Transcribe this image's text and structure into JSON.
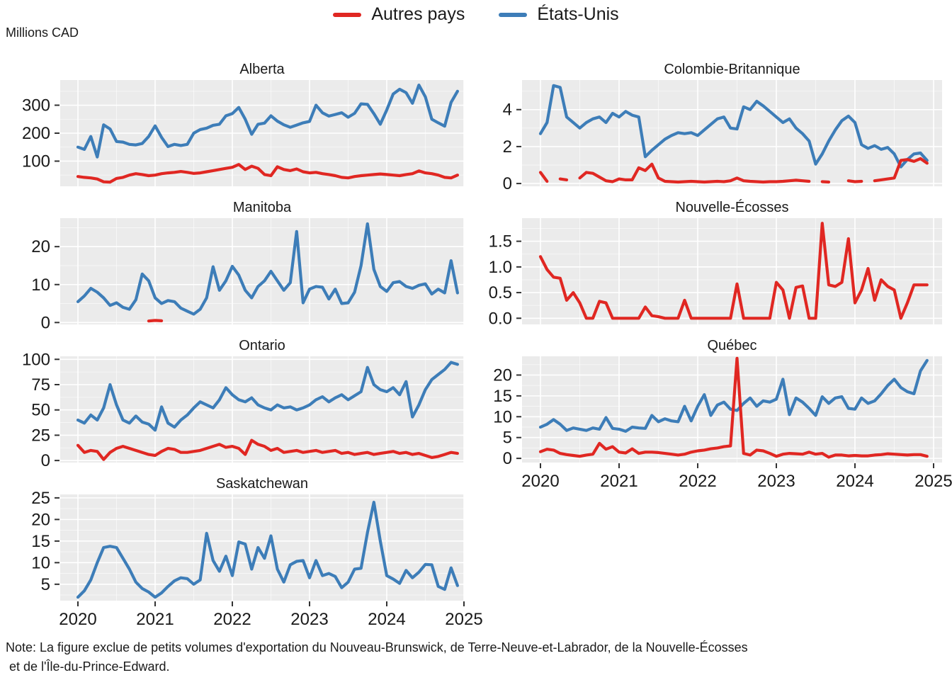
{
  "unit_label": "Millions CAD",
  "legend": {
    "items": [
      {
        "label": "Autres pays",
        "color": "#e02722"
      },
      {
        "label": "États-Unis",
        "color": "#3d7db8"
      }
    ]
  },
  "note": {
    "line1": "Note: La figure exclue de petits volumes d'exportation du Nouveau-Brunswick, de Terre-Neuve-et-Labrador, de la Nouvelle-Écosses",
    "line2": " et de l'Île-du-Prince-Edward."
  },
  "chart_data": {
    "type": "line",
    "x_frequency": "monthly",
    "x_start": "2020-01",
    "x_tick_labels": [
      "2020",
      "2021",
      "2022",
      "2023",
      "2024",
      "2025"
    ],
    "series_names": [
      "Autres pays",
      "États-Unis"
    ],
    "colors": {
      "autres_pays": "#e02722",
      "etats_unis": "#3d7db8"
    },
    "panel_background": "#ebebeb",
    "grid_color": "#ffffff",
    "facets": [
      {
        "key": "alberta",
        "title": "Alberta",
        "col": 0,
        "row": 0,
        "xaxis": false,
        "yticks": [
          100,
          200,
          300
        ],
        "tick_decimals": 0,
        "ylim": [
          10,
          390
        ],
        "series": {
          "etats_unis": [
            150,
            142,
            188,
            115,
            230,
            215,
            170,
            168,
            160,
            158,
            163,
            188,
            226,
            185,
            152,
            160,
            156,
            160,
            200,
            213,
            218,
            228,
            232,
            262,
            270,
            292,
            250,
            196,
            232,
            236,
            262,
            243,
            230,
            221,
            229,
            237,
            242,
            300,
            273,
            261,
            267,
            273,
            257,
            271,
            305,
            303,
            270,
            232,
            283,
            340,
            357,
            345,
            307,
            372,
            330,
            250,
            237,
            225,
            310,
            350
          ],
          "autres_pays": [
            45,
            42,
            40,
            36,
            26,
            25,
            38,
            42,
            50,
            55,
            52,
            48,
            50,
            55,
            58,
            60,
            63,
            60,
            56,
            58,
            62,
            66,
            70,
            74,
            78,
            88,
            70,
            82,
            74,
            52,
            48,
            80,
            70,
            66,
            72,
            62,
            58,
            60,
            55,
            52,
            48,
            42,
            40,
            45,
            48,
            50,
            52,
            54,
            52,
            50,
            48,
            52,
            55,
            65,
            58,
            55,
            50,
            42,
            40,
            50
          ]
        }
      },
      {
        "key": "colombie_britannique",
        "title": "Colombie-Britannique",
        "col": 1,
        "row": 0,
        "xaxis": false,
        "yticks": [
          0,
          2,
          4
        ],
        "tick_decimals": 0,
        "ylim": [
          -0.15,
          5.6
        ],
        "series": {
          "etats_unis": [
            2.7,
            3.3,
            5.3,
            5.2,
            3.6,
            3.3,
            3.0,
            3.3,
            3.5,
            3.6,
            3.3,
            3.8,
            3.6,
            3.9,
            3.7,
            3.6,
            1.45,
            1.8,
            2.1,
            2.4,
            2.6,
            2.75,
            2.7,
            2.75,
            2.6,
            2.9,
            3.2,
            3.5,
            3.6,
            3.0,
            2.95,
            4.15,
            4.0,
            4.45,
            4.2,
            3.9,
            3.6,
            3.3,
            3.5,
            3.0,
            2.7,
            2.3,
            1.05,
            1.6,
            2.3,
            2.9,
            3.4,
            3.65,
            3.3,
            2.1,
            1.9,
            2.05,
            1.85,
            1.95,
            1.6,
            0.9,
            1.3,
            1.6,
            1.65,
            1.25
          ],
          "autres_pays": [
            0.6,
            0.12,
            null,
            0.25,
            0.2,
            null,
            0.3,
            0.6,
            0.55,
            0.35,
            0.15,
            0.1,
            0.25,
            0.2,
            0.2,
            0.85,
            0.7,
            1.05,
            0.3,
            0.12,
            0.1,
            0.08,
            0.1,
            0.12,
            0.1,
            0.08,
            0.1,
            0.12,
            0.1,
            0.15,
            0.3,
            0.15,
            0.12,
            0.1,
            0.08,
            0.1,
            0.1,
            0.12,
            0.15,
            0.18,
            0.15,
            0.12,
            null,
            0.1,
            0.08,
            null,
            null,
            0.15,
            0.1,
            0.12,
            null,
            0.15,
            0.2,
            0.25,
            0.3,
            1.25,
            1.3,
            1.2,
            1.35,
            1.1
          ]
        }
      },
      {
        "key": "manitoba",
        "title": "Manitoba",
        "col": 0,
        "row": 1,
        "xaxis": false,
        "yticks": [
          0,
          10,
          20
        ],
        "tick_decimals": 0,
        "ylim": [
          -0.5,
          27.5
        ],
        "series": {
          "etats_unis": [
            5.5,
            7.0,
            9.0,
            8.0,
            6.5,
            4.5,
            5.2,
            4.0,
            3.5,
            6.0,
            12.8,
            11.0,
            6.5,
            5.0,
            5.8,
            5.5,
            3.8,
            3.0,
            2.2,
            3.5,
            6.5,
            14.7,
            8.5,
            11.0,
            14.8,
            12.5,
            8.5,
            6.5,
            9.5,
            11.0,
            13.5,
            11.0,
            8.5,
            10.5,
            24.0,
            5.2,
            8.8,
            9.5,
            9.3,
            6.2,
            8.8,
            5.0,
            5.2,
            8.0,
            15.0,
            26.0,
            14.0,
            9.5,
            8.2,
            10.5,
            10.8,
            9.5,
            9.0,
            9.8,
            10.2,
            7.5,
            8.8,
            7.8,
            16.3,
            7.8
          ],
          "autres_pays": [
            null,
            null,
            null,
            null,
            null,
            null,
            null,
            null,
            null,
            null,
            null,
            0.4,
            0.55,
            0.45,
            null,
            null,
            null,
            null,
            null,
            null,
            null,
            null,
            null,
            null,
            null,
            null,
            null,
            null,
            null,
            null,
            null,
            null,
            null,
            null,
            null,
            null,
            null,
            null,
            null,
            null,
            null,
            null,
            null,
            null,
            null,
            null,
            null,
            null,
            null,
            null,
            null,
            null,
            null,
            null,
            null,
            null,
            null,
            null,
            null,
            null
          ]
        }
      },
      {
        "key": "nouvelle_ecosses",
        "title": "Nouvelle-Écosses",
        "col": 1,
        "row": 1,
        "xaxis": false,
        "yticks": [
          0,
          0.5,
          1.0,
          1.5
        ],
        "tick_decimals": 1,
        "ylim": [
          -0.12,
          1.95
        ],
        "series": {
          "etats_unis": null,
          "autres_pays": [
            1.2,
            0.95,
            0.8,
            0.78,
            0.35,
            0.5,
            0.3,
            0.0,
            0.0,
            0.33,
            0.3,
            0.0,
            0.0,
            0.0,
            0.0,
            0.0,
            0.22,
            0.05,
            0.03,
            0.0,
            0.0,
            0.0,
            0.35,
            0.0,
            0.0,
            0.0,
            0.0,
            0.0,
            0.0,
            0.0,
            0.67,
            0.0,
            0.0,
            0.0,
            0.0,
            0.0,
            0.7,
            0.55,
            0.0,
            0.6,
            0.63,
            0.0,
            0.0,
            1.85,
            0.65,
            0.62,
            0.7,
            1.55,
            0.3,
            0.55,
            0.97,
            0.35,
            0.75,
            0.62,
            0.55,
            0.0,
            0.3,
            0.65,
            0.65,
            0.65
          ]
        }
      },
      {
        "key": "ontario",
        "title": "Ontario",
        "col": 0,
        "row": 2,
        "xaxis": false,
        "yticks": [
          0,
          25,
          50,
          75,
          100
        ],
        "tick_decimals": 0,
        "ylim": [
          -2,
          103
        ],
        "series": {
          "etats_unis": [
            40,
            37,
            45,
            40,
            52,
            75,
            55,
            40,
            37,
            44,
            38,
            36,
            30,
            53,
            37,
            33,
            40,
            45,
            52,
            58,
            55,
            52,
            60,
            72,
            65,
            60,
            58,
            62,
            55,
            52,
            50,
            55,
            52,
            53,
            50,
            52,
            55,
            60,
            63,
            58,
            62,
            65,
            60,
            64,
            68,
            92,
            75,
            70,
            68,
            72,
            65,
            78,
            43,
            55,
            70,
            80,
            85,
            90,
            97,
            95
          ],
          "autres_pays": [
            15,
            8,
            10,
            9,
            1,
            8,
            12,
            14,
            12,
            10,
            8,
            6,
            5,
            9,
            12,
            11,
            8,
            8,
            9,
            10,
            12,
            14,
            16,
            13,
            14,
            12,
            6,
            20,
            16,
            14,
            10,
            12,
            8,
            9,
            10,
            8,
            9,
            10,
            8,
            9,
            10,
            7,
            8,
            6,
            7,
            8,
            6,
            7,
            8,
            9,
            7,
            8,
            6,
            7,
            5,
            3,
            4,
            6,
            8,
            7
          ]
        }
      },
      {
        "key": "quebec",
        "title": "Québec",
        "col": 1,
        "row": 2,
        "xaxis": true,
        "yticks": [
          0,
          5,
          10,
          15,
          20
        ],
        "tick_decimals": 0,
        "ylim": [
          -1,
          24.5
        ],
        "series": {
          "etats_unis": [
            7.5,
            8.2,
            9.3,
            8.2,
            6.7,
            7.3,
            7.0,
            6.7,
            7.3,
            7.0,
            9.8,
            7.2,
            7.0,
            6.5,
            7.5,
            7.3,
            7.2,
            10.3,
            8.8,
            9.5,
            9.0,
            8.8,
            12.5,
            9.0,
            12.5,
            15.3,
            10.3,
            12.8,
            13.5,
            11.8,
            11.5,
            13.2,
            14.5,
            12.5,
            13.8,
            13.5,
            14.2,
            19.0,
            10.5,
            14.5,
            13.5,
            12.0,
            10.3,
            14.8,
            13.2,
            14.5,
            14.8,
            12.0,
            11.8,
            14.5,
            13.2,
            13.8,
            15.5,
            17.5,
            19.0,
            17.0,
            16.0,
            15.5,
            21.0,
            23.5
          ],
          "autres_pays": [
            1.6,
            2.2,
            2.0,
            1.2,
            0.9,
            0.7,
            0.5,
            0.8,
            1.0,
            3.6,
            2.2,
            2.8,
            1.5,
            1.3,
            2.3,
            1.2,
            1.5,
            1.5,
            1.4,
            1.2,
            1.0,
            0.8,
            1.0,
            1.5,
            1.8,
            2.0,
            2.3,
            2.5,
            2.8,
            3.0,
            24.0,
            1.2,
            0.8,
            2.0,
            1.8,
            1.2,
            0.5,
            1.0,
            1.2,
            1.1,
            1.0,
            1.5,
            1.0,
            1.2,
            0.3,
            0.8,
            0.8,
            0.6,
            0.7,
            0.6,
            0.6,
            0.8,
            0.9,
            1.1,
            1.0,
            0.9,
            0.8,
            0.9,
            0.9,
            0.5
          ]
        }
      },
      {
        "key": "saskatchewan",
        "title": "Saskatchewan",
        "col": 0,
        "row": 3,
        "xaxis": true,
        "yticks": [
          5,
          10,
          15,
          20,
          25
        ],
        "tick_decimals": 0,
        "ylim": [
          1.2,
          25.8
        ],
        "series": {
          "etats_unis": [
            2.0,
            3.5,
            6.0,
            10.0,
            13.5,
            13.8,
            13.5,
            11.0,
            8.5,
            5.5,
            4.0,
            3.2,
            2.0,
            3.0,
            4.5,
            5.8,
            6.5,
            6.3,
            5.0,
            6.0,
            16.8,
            10.5,
            8.0,
            11.5,
            7.0,
            14.8,
            14.3,
            8.5,
            13.5,
            11.0,
            16.2,
            8.5,
            5.5,
            9.5,
            10.3,
            10.5,
            6.5,
            10.5,
            7.0,
            7.5,
            6.8,
            4.2,
            5.5,
            8.5,
            8.7,
            17.0,
            24.0,
            15.0,
            7.0,
            6.2,
            5.2,
            8.2,
            6.5,
            7.8,
            9.6,
            9.5,
            4.5,
            3.8,
            8.8,
            4.7
          ],
          "autres_pays": null
        }
      }
    ]
  }
}
